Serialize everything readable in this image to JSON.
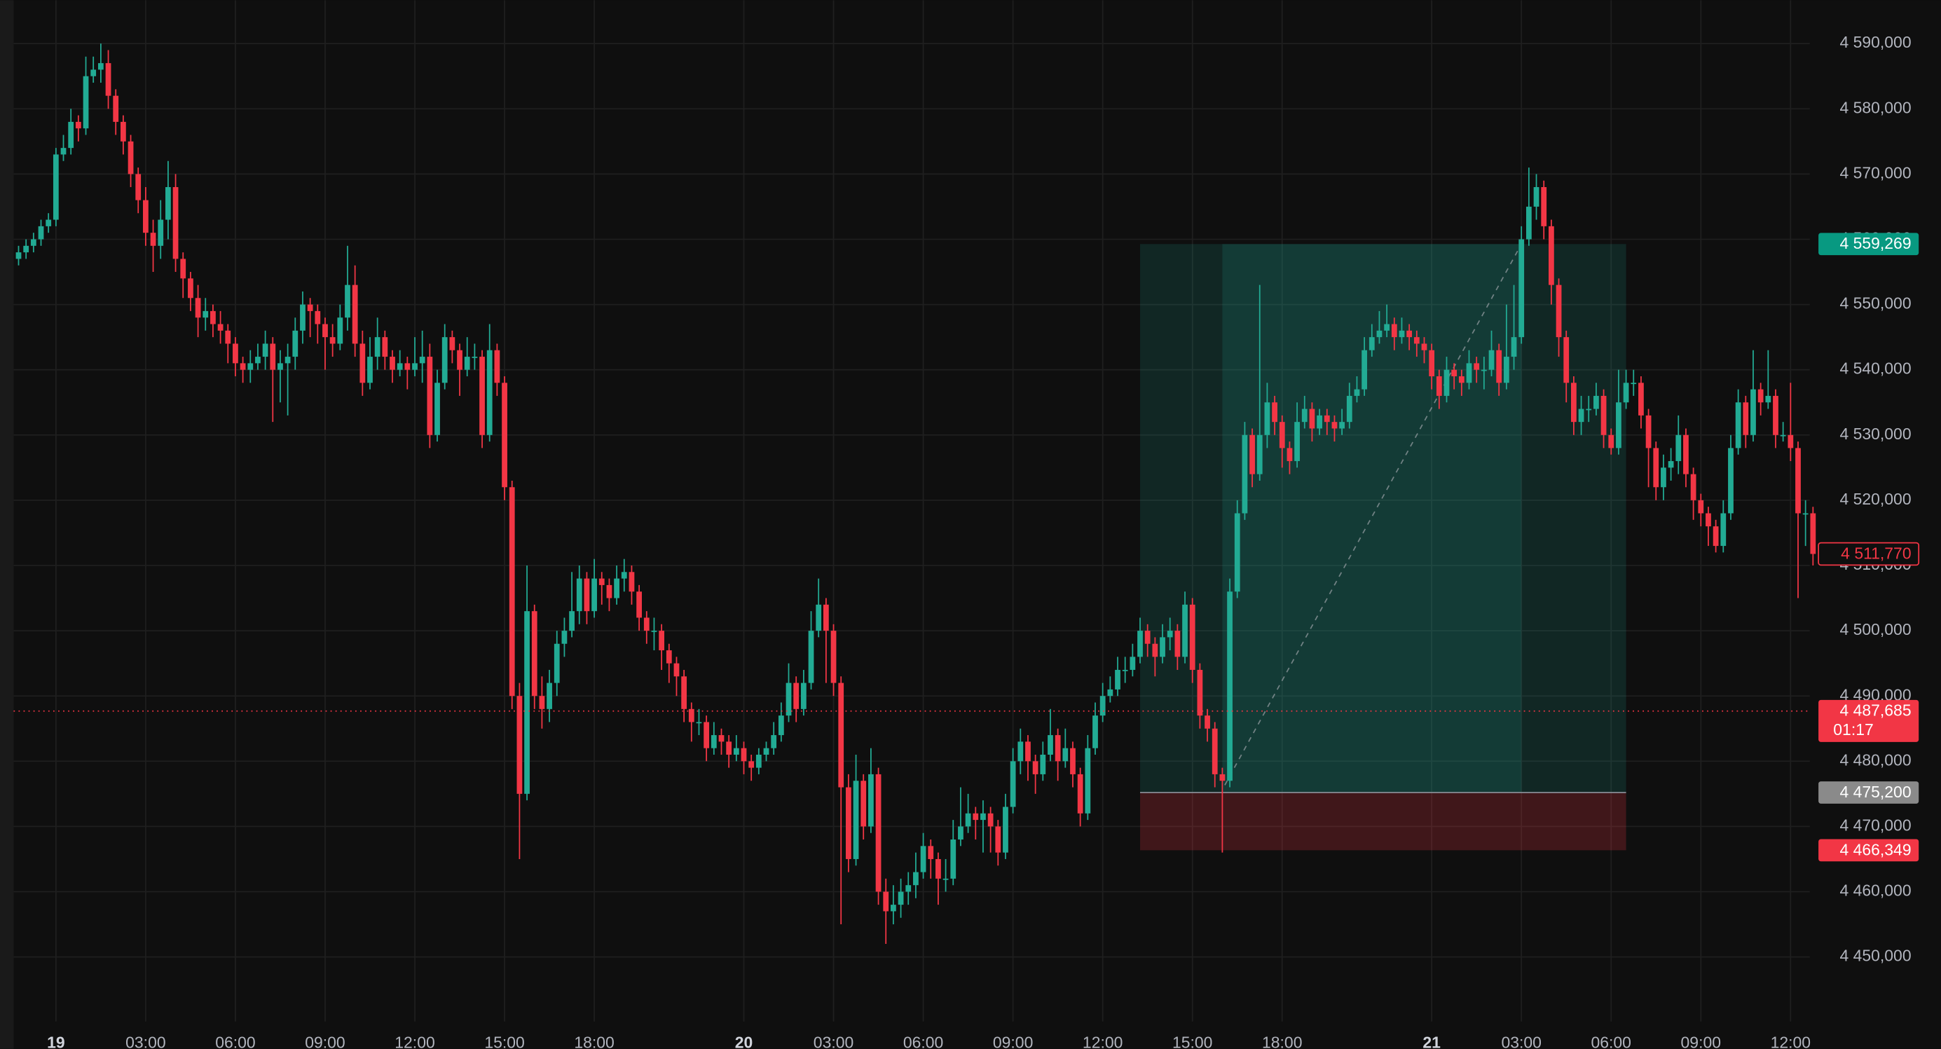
{
  "chart_data": {
    "type": "candlestick",
    "up_color": "#22ab94",
    "down_color": "#f23645",
    "grid": true,
    "categories": [
      null,
      null,
      null,
      null,
      null,
      "19",
      null,
      null,
      null,
      null,
      null,
      null,
      null,
      null,
      null,
      null,
      null,
      "03:00",
      null,
      null,
      null,
      null,
      null,
      null,
      null,
      null,
      null,
      null,
      null,
      "06:00",
      null,
      null,
      null,
      null,
      null,
      null,
      null,
      null,
      null,
      null,
      null,
      "09:00",
      null,
      null,
      null,
      null,
      null,
      null,
      null,
      null,
      null,
      null,
      null,
      "12:00",
      null,
      null,
      null,
      null,
      null,
      null,
      null,
      null,
      null,
      null,
      null,
      "15:00",
      null,
      null,
      null,
      null,
      null,
      null,
      null,
      null,
      null,
      null,
      null,
      "18:00",
      null,
      null,
      null,
      null,
      null,
      null,
      null,
      null,
      null,
      null,
      null,
      null,
      null,
      null,
      null,
      null,
      null,
      null,
      null,
      "20",
      null,
      null,
      null,
      null,
      null,
      null,
      null,
      null,
      null,
      null,
      null,
      "03:00",
      null,
      null,
      null,
      null,
      null,
      null,
      null,
      null,
      null,
      null,
      null,
      "06:00",
      null,
      null,
      null,
      null,
      null,
      null,
      null,
      null,
      null,
      null,
      null,
      "09:00",
      null,
      null,
      null,
      null,
      null,
      null,
      null,
      null,
      null,
      null,
      null,
      "12:00",
      null,
      null,
      null,
      null,
      null,
      null,
      null,
      null,
      null,
      null,
      null,
      "15:00",
      null,
      null,
      null,
      null,
      null,
      null,
      null,
      null,
      null,
      null,
      null,
      "18:00",
      null,
      null,
      null,
      null,
      null,
      null,
      null,
      null,
      null,
      null,
      null,
      null,
      null,
      null,
      null,
      null,
      null,
      null,
      null,
      "21",
      null,
      null,
      null,
      null,
      null,
      null,
      null,
      null,
      null,
      null,
      null,
      "03:00",
      null,
      null,
      null,
      null,
      null,
      null,
      null,
      null,
      null,
      null,
      null,
      "06:00",
      null,
      null,
      null,
      null,
      null,
      null,
      null,
      null,
      null,
      null,
      null,
      "09:00",
      null,
      null,
      null,
      null,
      null,
      null,
      null,
      null,
      null,
      null,
      null,
      "12:00",
      null,
      null,
      null
    ],
    "open": [
      4557000,
      4558000,
      4559000,
      4560000,
      4562000,
      4563000,
      4573000,
      4574000,
      4578000,
      4577000,
      4585000,
      4586000,
      4587000,
      4582000,
      4578000,
      4575000,
      4570000,
      4566000,
      4561000,
      4559000,
      4563000,
      4568000,
      4557000,
      4554000,
      4551000,
      4548000,
      4549000,
      4547000,
      4546000,
      4544000,
      4541000,
      4540000,
      4541000,
      4542000,
      4544000,
      4540000,
      4541000,
      4542000,
      4546000,
      4550000,
      4549000,
      4547000,
      4545000,
      4544000,
      4548000,
      4553000,
      4544000,
      4538000,
      4542000,
      4545000,
      4542000,
      4540000,
      4541000,
      4540000,
      4541000,
      4542000,
      4530000,
      4538000,
      4545000,
      4543000,
      4540000,
      4542000,
      4542000,
      4530000,
      4543000,
      4538000,
      4522000,
      4490000,
      4475000,
      4503000,
      4490000,
      4488000,
      4492000,
      4498000,
      4500000,
      4503000,
      4508000,
      4503000,
      4508000,
      4507000,
      4505000,
      4508000,
      4509000,
      4506000,
      4502000,
      4500000,
      4500000,
      4497000,
      4495000,
      4493000,
      4488000,
      4486000,
      4486000,
      4482000,
      4484000,
      4483000,
      4481000,
      4482000,
      4480000,
      4479000,
      4481000,
      4482000,
      4484000,
      4487000,
      4492000,
      4488000,
      4492000,
      4500000,
      4504000,
      4500000,
      4492000,
      4476000,
      4465000,
      4477000,
      4470000,
      4478000,
      4460000,
      4457000,
      4458000,
      4460000,
      4461000,
      4463000,
      4467000,
      4465000,
      4462000,
      4462000,
      4468000,
      4470000,
      4472000,
      4471000,
      4472000,
      4470000,
      4466000,
      4473000,
      4480000,
      4483000,
      4480000,
      4478000,
      4481000,
      4484000,
      4480000,
      4482000,
      4478000,
      4472000,
      4482000,
      4487000,
      4490000,
      4491000,
      4494000,
      4494000,
      4496000,
      4500000,
      4498000,
      4496000,
      4499000,
      4500000,
      4496000,
      4504000,
      4494000,
      4487000,
      4485000,
      4478000,
      4477000,
      4506000,
      4518000,
      4530000,
      4524000,
      4530000,
      4535000,
      4532000,
      4528000,
      4526000,
      4532000,
      4534000,
      4531000,
      4533000,
      4532000,
      4531000,
      4532000,
      4536000,
      4537000,
      4543000,
      4545000,
      4546000,
      4547000,
      4545000,
      4546000,
      4545000,
      4544000,
      4543000,
      4539000,
      4536000,
      4540000,
      4539000,
      4538000,
      4541000,
      4540000,
      4540000,
      4543000,
      4538000,
      4542000,
      4545000,
      4560000,
      4565000,
      4568000,
      4562000,
      4553000,
      4545000,
      4538000,
      4532000,
      4534000,
      4534000,
      4536000,
      4530000,
      4528000,
      4535000,
      4538000,
      4538000,
      4533000,
      4528000,
      4522000,
      4525000,
      4526000,
      4530000,
      4524000,
      4520000,
      4518000,
      4516000,
      4513000,
      4518000,
      4528000,
      4535000,
      4530000,
      4537000,
      4535000,
      4536000,
      4530000,
      4530000,
      4528000,
      4518000,
      4518000
    ],
    "high": [
      4559000,
      4560000,
      4561000,
      4563000,
      4564000,
      4574000,
      4576000,
      4580000,
      4579000,
      4588000,
      4588000,
      4590000,
      4589000,
      4583000,
      4579000,
      4576000,
      4571000,
      4568000,
      4563000,
      4566000,
      4572000,
      4570000,
      4558000,
      4555000,
      4553000,
      4551000,
      4550000,
      4549000,
      4547000,
      4545000,
      4542000,
      4543000,
      4544000,
      4546000,
      4545000,
      4543000,
      4544000,
      4548000,
      4552000,
      4551000,
      4550000,
      4548000,
      4547000,
      4550000,
      4559000,
      4556000,
      4546000,
      4545000,
      4548000,
      4546000,
      4543000,
      4543000,
      4542000,
      4545000,
      4546000,
      4544000,
      4540000,
      4547000,
      4546000,
      4544000,
      4545000,
      4544000,
      4543000,
      4547000,
      4544000,
      4539000,
      4523000,
      4492000,
      4510000,
      4504000,
      4493000,
      4494000,
      4500000,
      4502000,
      4509000,
      4510000,
      4509000,
      4511000,
      4509000,
      4508000,
      4510000,
      4511000,
      4510000,
      4507000,
      4503000,
      4502000,
      4501000,
      4498000,
      4496000,
      4494000,
      4489000,
      4488000,
      4487000,
      4486000,
      4485000,
      4484000,
      4484000,
      4483000,
      4481000,
      4482000,
      4483000,
      4486000,
      4489000,
      4495000,
      4493000,
      4494000,
      4503000,
      4508000,
      4505000,
      4501000,
      4493000,
      4478000,
      4481000,
      4478000,
      4482000,
      4479000,
      4462000,
      4461000,
      4462000,
      4463000,
      4466000,
      4469000,
      4468000,
      4466000,
      4465000,
      4471000,
      4476000,
      4475000,
      4473000,
      4474000,
      4473000,
      4471000,
      4475000,
      4482000,
      4485000,
      4484000,
      4481000,
      4483000,
      4488000,
      4485000,
      4485000,
      4483000,
      4479000,
      4484000,
      4489000,
      4492000,
      4493000,
      4496000,
      4496000,
      4498000,
      4502000,
      4501000,
      4499000,
      4501000,
      4502000,
      4501000,
      4506000,
      4505000,
      4495000,
      4488000,
      4486000,
      4479000,
      4508000,
      4520000,
      4532000,
      4531000,
      4553000,
      4538000,
      4536000,
      4533000,
      4529000,
      4535000,
      4536000,
      4535000,
      4534000,
      4534000,
      4533000,
      4534000,
      4538000,
      4539000,
      4545000,
      4547000,
      4549000,
      4550000,
      4548000,
      4548000,
      4547000,
      4546000,
      4545000,
      4544000,
      4540000,
      4542000,
      4541000,
      4540000,
      4543000,
      4542000,
      4542000,
      4546000,
      4544000,
      4550000,
      4553000,
      4562000,
      4571000,
      4570000,
      4569000,
      4563000,
      4554000,
      4546000,
      4539000,
      4536000,
      4536000,
      4538000,
      4537000,
      4531000,
      4540000,
      4540000,
      4540000,
      4539000,
      4534000,
      4529000,
      4527000,
      4528000,
      4533000,
      4531000,
      4525000,
      4521000,
      4519000,
      4517000,
      4520000,
      4530000,
      4537000,
      4536000,
      4543000,
      4538000,
      4543000,
      4537000,
      4532000,
      4538000,
      4529000,
      4520000,
      4519000
    ],
    "low": [
      4556000,
      4557000,
      4558000,
      4559000,
      4561000,
      4562000,
      4572000,
      4573000,
      4575000,
      4576000,
      4584000,
      4584000,
      4580000,
      4576000,
      4573000,
      4568000,
      4564000,
      4559000,
      4555000,
      4557000,
      4560000,
      4555000,
      4551000,
      4549000,
      4545000,
      4546000,
      4545000,
      4544000,
      4541000,
      4539000,
      4538000,
      4538000,
      4540000,
      4540000,
      4532000,
      4535000,
      4533000,
      4540000,
      4544000,
      4545000,
      4544000,
      4540000,
      4542000,
      4543000,
      4546000,
      4542000,
      4536000,
      4537000,
      4540000,
      4540000,
      4538000,
      4539000,
      4537000,
      4539000,
      4538000,
      4528000,
      4529000,
      4537000,
      4541000,
      4536000,
      4539000,
      4540000,
      4528000,
      4529000,
      4536000,
      4520000,
      4488000,
      4465000,
      4474000,
      4488000,
      4485000,
      4486000,
      4490000,
      4496000,
      4499000,
      4501000,
      4501000,
      4502000,
      4504000,
      4503000,
      4504000,
      4506000,
      4504000,
      4500000,
      4498000,
      4497000,
      4494000,
      4492000,
      4490000,
      4486000,
      4483000,
      4484000,
      4480000,
      4481000,
      4481000,
      4479000,
      4480000,
      4478000,
      4477000,
      4478000,
      4480000,
      4481000,
      4483000,
      4486000,
      4486000,
      4487000,
      4491000,
      4499000,
      4492000,
      4490000,
      4455000,
      4463000,
      4464000,
      4468000,
      4469000,
      4458000,
      4452000,
      4455000,
      4456000,
      4458000,
      4459000,
      4462000,
      4462000,
      4458000,
      4460000,
      4461000,
      4467000,
      4469000,
      4468000,
      4466000,
      4466000,
      4464000,
      4465000,
      4472000,
      4478000,
      4477000,
      4475000,
      4477000,
      4480000,
      4477000,
      4479000,
      4476000,
      4470000,
      4471000,
      4481000,
      4486000,
      4489000,
      4490000,
      4492000,
      4493000,
      4495000,
      4496000,
      4493000,
      4495000,
      4497000,
      4494000,
      4495000,
      4492000,
      4485000,
      4483000,
      4476000,
      4466000,
      4476000,
      4505000,
      4517000,
      4522000,
      4523000,
      4528000,
      4530000,
      4525000,
      4524000,
      4525000,
      4531000,
      4529000,
      4530000,
      4530000,
      4529000,
      4530000,
      4531000,
      4535000,
      4536000,
      4542000,
      4544000,
      4545000,
      4543000,
      4544000,
      4543000,
      4542000,
      4541000,
      4537000,
      4534000,
      4535000,
      4537000,
      4536000,
      4537000,
      4538000,
      4537000,
      4539000,
      4536000,
      4537000,
      4540000,
      4544000,
      4559000,
      4563000,
      4560000,
      4550000,
      4542000,
      4535000,
      4530000,
      4530000,
      4532000,
      4533000,
      4528000,
      4527000,
      4527000,
      4534000,
      4536000,
      4531000,
      4522000,
      4520000,
      4520000,
      4523000,
      4524000,
      4522000,
      4517000,
      4516000,
      4513000,
      4512000,
      4512000,
      4517000,
      4527000,
      4528000,
      4529000,
      4533000,
      4534000,
      4528000,
      4529000,
      4526000,
      4505000,
      4513000,
      4510000
    ],
    "close": [
      4558000,
      4559000,
      4560000,
      4562000,
      4563000,
      4573000,
      4574000,
      4578000,
      4577000,
      4585000,
      4586000,
      4587000,
      4582000,
      4578000,
      4575000,
      4570000,
      4566000,
      4561000,
      4559000,
      4563000,
      4568000,
      4557000,
      4554000,
      4551000,
      4548000,
      4549000,
      4547000,
      4546000,
      4544000,
      4541000,
      4540000,
      4541000,
      4542000,
      4544000,
      4540000,
      4541000,
      4542000,
      4546000,
      4550000,
      4549000,
      4547000,
      4545000,
      4544000,
      4548000,
      4553000,
      4544000,
      4538000,
      4542000,
      4545000,
      4542000,
      4540000,
      4541000,
      4540000,
      4541000,
      4542000,
      4530000,
      4538000,
      4545000,
      4543000,
      4540000,
      4542000,
      4542000,
      4530000,
      4543000,
      4538000,
      4522000,
      4490000,
      4475000,
      4503000,
      4490000,
      4488000,
      4492000,
      4498000,
      4500000,
      4503000,
      4508000,
      4503000,
      4508000,
      4507000,
      4505000,
      4508000,
      4509000,
      4506000,
      4502000,
      4500000,
      4500000,
      4497000,
      4495000,
      4493000,
      4488000,
      4486000,
      4486000,
      4482000,
      4484000,
      4483000,
      4481000,
      4482000,
      4480000,
      4479000,
      4481000,
      4482000,
      4484000,
      4487000,
      4492000,
      4488000,
      4492000,
      4500000,
      4504000,
      4500000,
      4492000,
      4476000,
      4465000,
      4477000,
      4470000,
      4478000,
      4460000,
      4457000,
      4458000,
      4460000,
      4461000,
      4463000,
      4467000,
      4465000,
      4462000,
      4462000,
      4468000,
      4470000,
      4472000,
      4471000,
      4472000,
      4470000,
      4466000,
      4473000,
      4480000,
      4483000,
      4480000,
      4478000,
      4481000,
      4484000,
      4480000,
      4482000,
      4478000,
      4472000,
      4482000,
      4487000,
      4490000,
      4491000,
      4494000,
      4494000,
      4496000,
      4500000,
      4498000,
      4496000,
      4499000,
      4500000,
      4496000,
      4504000,
      4494000,
      4487000,
      4485000,
      4478000,
      4477000,
      4506000,
      4518000,
      4530000,
      4524000,
      4530000,
      4535000,
      4532000,
      4528000,
      4526000,
      4532000,
      4534000,
      4531000,
      4533000,
      4532000,
      4531000,
      4532000,
      4536000,
      4537000,
      4543000,
      4545000,
      4546000,
      4547000,
      4545000,
      4546000,
      4545000,
      4544000,
      4543000,
      4539000,
      4536000,
      4540000,
      4539000,
      4538000,
      4541000,
      4540000,
      4540000,
      4543000,
      4538000,
      4542000,
      4545000,
      4560000,
      4565000,
      4568000,
      4562000,
      4553000,
      4545000,
      4538000,
      4532000,
      4534000,
      4534000,
      4536000,
      4530000,
      4528000,
      4535000,
      4538000,
      4538000,
      4533000,
      4528000,
      4522000,
      4525000,
      4526000,
      4530000,
      4524000,
      4520000,
      4518000,
      4516000,
      4513000,
      4518000,
      4528000,
      4535000,
      4530000,
      4537000,
      4535000,
      4536000,
      4530000,
      4530000,
      4528000,
      4518000,
      4518000,
      4511770
    ],
    "ylim": [
      4440100,
      4596640
    ],
    "yticks": [
      {
        "value": 4450000,
        "label": "4 450,000"
      },
      {
        "value": 4460000,
        "label": "4 460,000"
      },
      {
        "value": 4470000,
        "label": "4 470,000"
      },
      {
        "value": 4480000,
        "label": "4 480,000"
      },
      {
        "value": 4490000,
        "label": "4 490,000"
      },
      {
        "value": 4500000,
        "label": "4 500,000"
      },
      {
        "value": 4510000,
        "label": "4 510,000"
      },
      {
        "value": 4520000,
        "label": "4 520,000"
      },
      {
        "value": 4530000,
        "label": "4 530,000"
      },
      {
        "value": 4540000,
        "label": "4 540,000"
      },
      {
        "value": 4550000,
        "label": "4 550,000"
      },
      {
        "value": 4560000,
        "label": "4 560,000"
      },
      {
        "value": 4570000,
        "label": "4 570,000"
      },
      {
        "value": 4580000,
        "label": "4 580,000"
      },
      {
        "value": 4590000,
        "label": "4 590,000"
      }
    ],
    "position": {
      "target": {
        "value": 4559269,
        "label": "4 559,269"
      },
      "entry": {
        "value": 4475200,
        "label": "4 475,200"
      },
      "stop": {
        "value": 4466349,
        "label": "4 466,349"
      }
    },
    "last_price": {
      "value": 4511770,
      "label": "4 511,770"
    },
    "current_price": {
      "value": 4487685,
      "label": "4 487,685",
      "countdown": "01:17"
    }
  }
}
